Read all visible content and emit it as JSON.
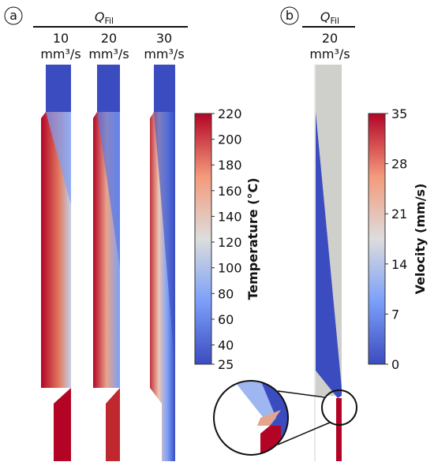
{
  "panel_a": {
    "label": "a",
    "header": {
      "symbol": "Q",
      "subscript": "Fil"
    },
    "columns": [
      {
        "value": "10",
        "unit": "mm³/s"
      },
      {
        "value": "20",
        "unit": "mm³/s"
      },
      {
        "value": "30",
        "unit": "mm³/s"
      }
    ],
    "colorbar": {
      "title": "Temperature (°C)",
      "lim": [
        25,
        220
      ],
      "ticks": [
        25,
        40,
        60,
        80,
        100,
        120,
        140,
        160,
        180,
        200,
        220
      ]
    }
  },
  "panel_b": {
    "label": "b",
    "header": {
      "symbol": "Q",
      "subscript": "Fil"
    },
    "columns": [
      {
        "value": "20",
        "unit": "mm³/s"
      }
    ],
    "colorbar": {
      "title": "Velocity (mm/s)",
      "lim": [
        0,
        35
      ],
      "ticks": [
        0,
        7,
        14,
        21,
        28,
        35
      ]
    }
  }
}
